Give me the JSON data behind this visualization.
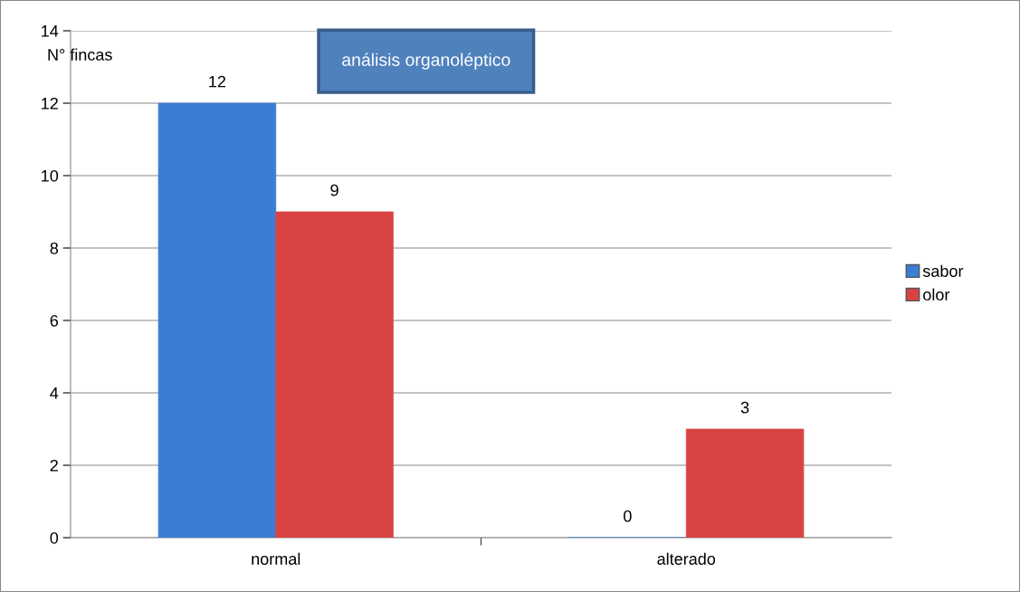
{
  "chart_data": {
    "type": "bar",
    "title": "análisis organoléptico",
    "ylabel": "N° fincas",
    "categories": [
      "normal",
      "alterado"
    ],
    "series": [
      {
        "name": "sabor",
        "color": "#3a7dd4",
        "values": [
          12,
          0
        ]
      },
      {
        "name": "olor",
        "color": "#d94343",
        "values": [
          9,
          3
        ]
      }
    ],
    "ylim": [
      0,
      14
    ],
    "yticks": [
      0,
      2,
      4,
      6,
      8,
      10,
      12,
      14
    ],
    "grid": "y",
    "legend": "right",
    "data_labels": true
  }
}
